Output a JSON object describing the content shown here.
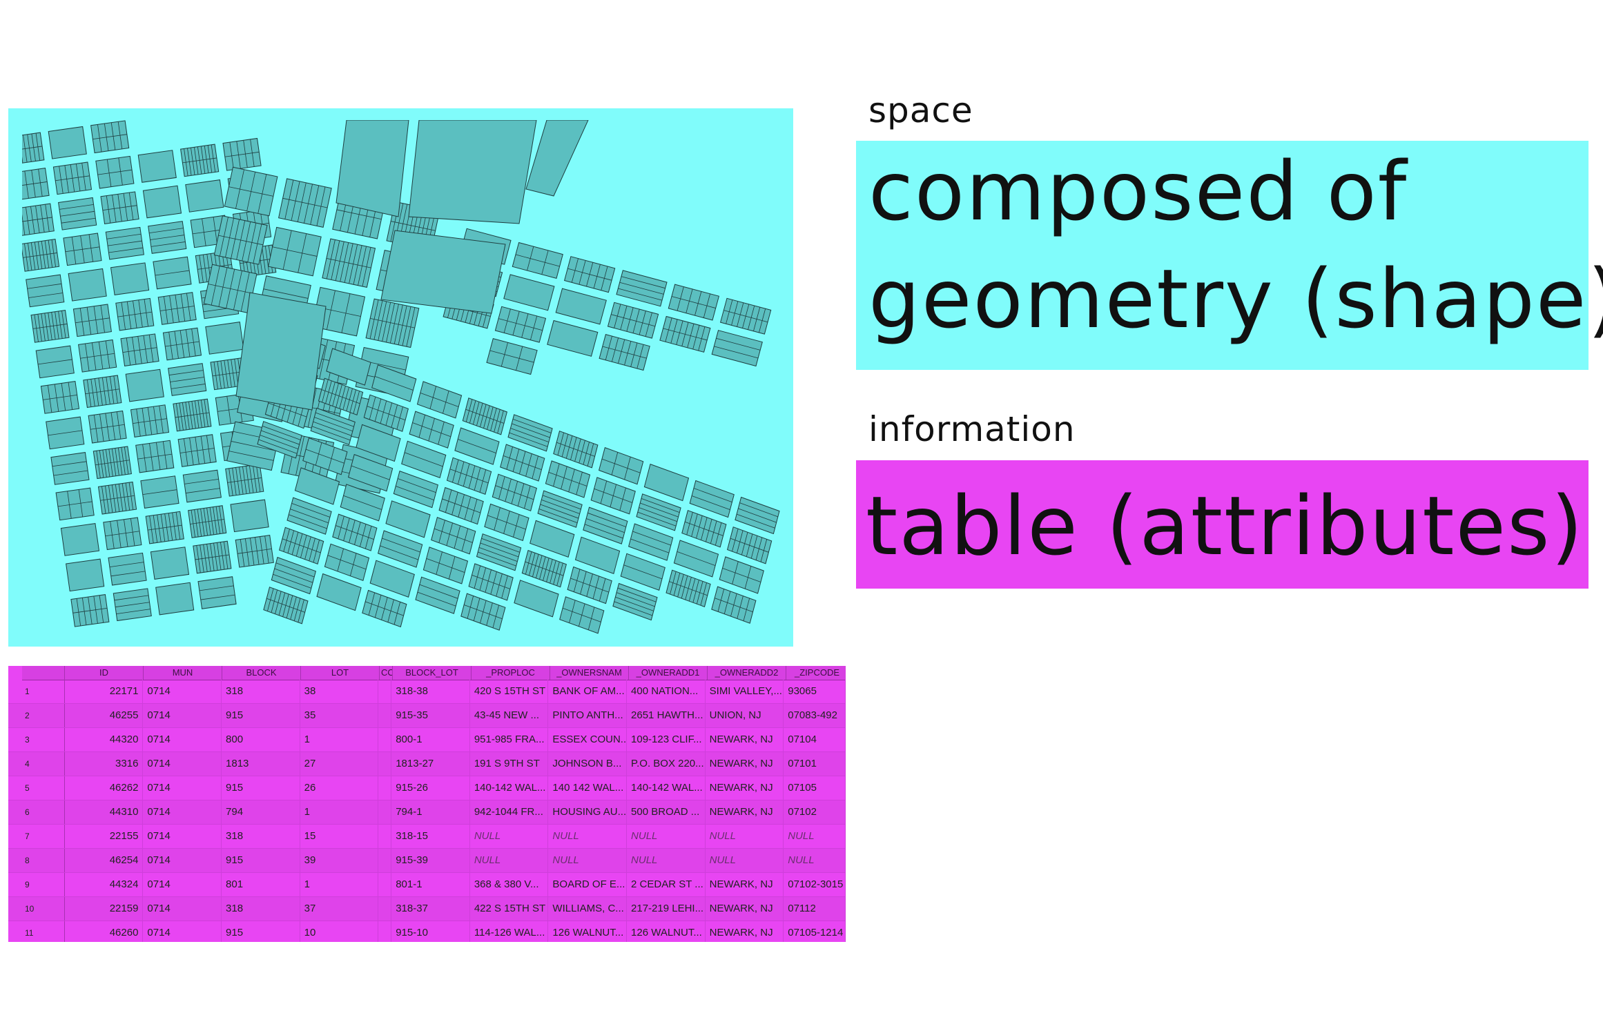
{
  "labels": {
    "space": "space",
    "geometry_line1": "composed of",
    "geometry_line2": "geometry (shape)",
    "information": "information",
    "table": "table (attributes)"
  },
  "colors": {
    "cyan": "#80fcfb",
    "magenta": "#e845f3",
    "parcel_fill": "#5bbfc0"
  },
  "table": {
    "columns": [
      "ID",
      "MUN",
      "BLOCK",
      "LOT",
      "CO",
      "BLOCK_LOT",
      "_PROPLOC",
      "_OWNERSNAM",
      "_OWNERADD1",
      "_OWNERADD2",
      "_ZIPCODE"
    ],
    "rows": [
      {
        "n": "1",
        "id": "22171",
        "mun": "0714",
        "block": "318",
        "lot": "38",
        "block_lot": "318-38",
        "proploc": "420 S 15TH ST",
        "owner": "BANK OF AM...",
        "add1": "400 NATION...",
        "add2": "SIMI VALLEY,...",
        "zip": "93065"
      },
      {
        "n": "2",
        "id": "46255",
        "mun": "0714",
        "block": "915",
        "lot": "35",
        "block_lot": "915-35",
        "proploc": "43-45 NEW ...",
        "owner": "PINTO ANTH...",
        "add1": "2651 HAWTH...",
        "add2": "UNION, NJ",
        "zip": "07083-492"
      },
      {
        "n": "3",
        "id": "44320",
        "mun": "0714",
        "block": "800",
        "lot": "1",
        "block_lot": "800-1",
        "proploc": "951-985 FRA...",
        "owner": "ESSEX COUN...",
        "add1": "109-123 CLIF...",
        "add2": "NEWARK, NJ",
        "zip": "07104"
      },
      {
        "n": "4",
        "id": "3316",
        "mun": "0714",
        "block": "1813",
        "lot": "27",
        "block_lot": "1813-27",
        "proploc": "191 S 9TH ST",
        "owner": "JOHNSON B...",
        "add1": "P.O. BOX 220...",
        "add2": "NEWARK, NJ",
        "zip": "07101"
      },
      {
        "n": "5",
        "id": "46262",
        "mun": "0714",
        "block": "915",
        "lot": "26",
        "block_lot": "915-26",
        "proploc": "140-142 WAL...",
        "owner": "140 142 WAL...",
        "add1": "140-142 WAL...",
        "add2": "NEWARK, NJ",
        "zip": "07105"
      },
      {
        "n": "6",
        "id": "44310",
        "mun": "0714",
        "block": "794",
        "lot": "1",
        "block_lot": "794-1",
        "proploc": "942-1044 FR...",
        "owner": "HOUSING AU...",
        "add1": "500 BROAD ...",
        "add2": "NEWARK, NJ",
        "zip": "07102"
      },
      {
        "n": "7",
        "id": "22155",
        "mun": "0714",
        "block": "318",
        "lot": "15",
        "block_lot": "318-15",
        "proploc": "NULL",
        "owner": "NULL",
        "add1": "NULL",
        "add2": "NULL",
        "zip": "NULL"
      },
      {
        "n": "8",
        "id": "46254",
        "mun": "0714",
        "block": "915",
        "lot": "39",
        "block_lot": "915-39",
        "proploc": "NULL",
        "owner": "NULL",
        "add1": "NULL",
        "add2": "NULL",
        "zip": "NULL"
      },
      {
        "n": "9",
        "id": "44324",
        "mun": "0714",
        "block": "801",
        "lot": "1",
        "block_lot": "801-1",
        "proploc": "368 & 380 V...",
        "owner": "BOARD OF E...",
        "add1": "2 CEDAR ST ...",
        "add2": "NEWARK, NJ",
        "zip": "07102-3015"
      },
      {
        "n": "10",
        "id": "22159",
        "mun": "0714",
        "block": "318",
        "lot": "37",
        "block_lot": "318-37",
        "proploc": "422 S 15TH ST",
        "owner": "WILLIAMS, C...",
        "add1": "217-219 LEHI...",
        "add2": "NEWARK, NJ",
        "zip": "07112"
      },
      {
        "n": "11",
        "id": "46260",
        "mun": "0714",
        "block": "915",
        "lot": "10",
        "block_lot": "915-10",
        "proploc": "114-126 WAL...",
        "owner": "126 WALNUT...",
        "add1": "126 WALNUT...",
        "add2": "NEWARK, NJ",
        "zip": "07105-1214"
      }
    ]
  }
}
